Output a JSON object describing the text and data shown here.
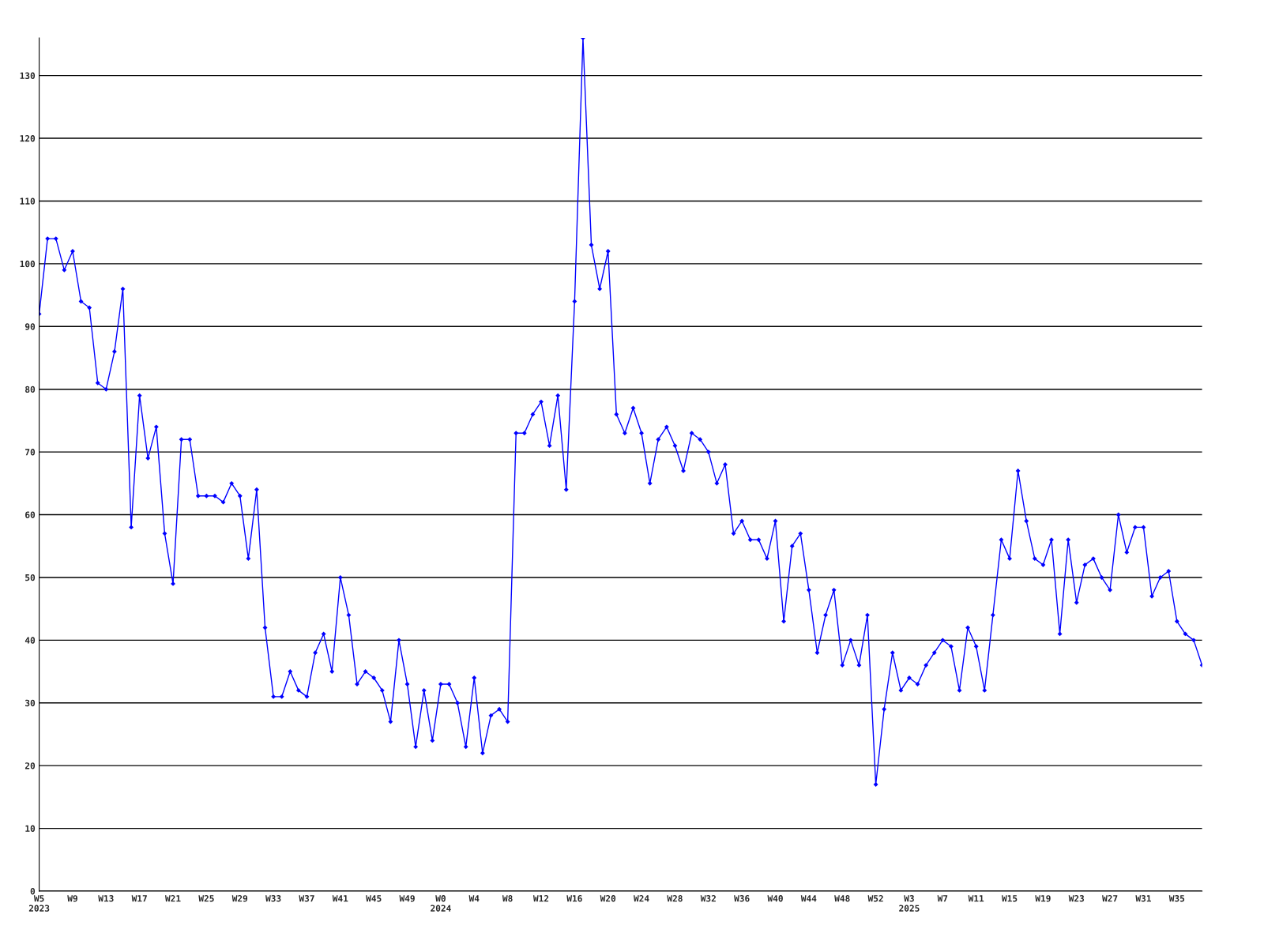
{
  "chart_data": {
    "type": "line",
    "categories": [
      "W5\n2023",
      null,
      null,
      null,
      "W9",
      null,
      null,
      null,
      "W13",
      null,
      null,
      null,
      "W17",
      null,
      null,
      null,
      "W21",
      null,
      null,
      null,
      "W25",
      null,
      null,
      null,
      "W29",
      null,
      null,
      null,
      "W33",
      null,
      null,
      null,
      "W37",
      null,
      null,
      null,
      "W41",
      null,
      null,
      null,
      "W45",
      null,
      null,
      null,
      "W49",
      null,
      null,
      null,
      "W0\n2024",
      null,
      null,
      null,
      "W4",
      null,
      null,
      null,
      "W8",
      null,
      null,
      null,
      "W12",
      null,
      null,
      null,
      "W16",
      null,
      null,
      null,
      "W20",
      null,
      null,
      null,
      "W24",
      null,
      null,
      null,
      "W28",
      null,
      null,
      null,
      "W32",
      null,
      null,
      null,
      "W36",
      null,
      null,
      null,
      "W40",
      null,
      null,
      null,
      "W44",
      null,
      null,
      null,
      "W48",
      null,
      null,
      null,
      "W52",
      null,
      null,
      null,
      "W3\n2025",
      null,
      null,
      null,
      "W7",
      null,
      null,
      null,
      "W11",
      null,
      null,
      null,
      "W15",
      null,
      null,
      null,
      "W19",
      null,
      null,
      null,
      "W23",
      null,
      null,
      null,
      "W27",
      null,
      null,
      null,
      "W31",
      null,
      null,
      null,
      "W35",
      null,
      null,
      null
    ],
    "series": [
      {
        "color": "#0000ff",
        "values": [
          92,
          104,
          104,
          99,
          102,
          94,
          93,
          81,
          80,
          86,
          96,
          58,
          79,
          69,
          74,
          57,
          49,
          72,
          72,
          63,
          63,
          63,
          62,
          65,
          63,
          53,
          64,
          42,
          31,
          31,
          35,
          32,
          31,
          38,
          41,
          35,
          50,
          44,
          33,
          35,
          34,
          32,
          27,
          40,
          33,
          23,
          32,
          24,
          33,
          33,
          30,
          23,
          34,
          22,
          28,
          29,
          27,
          73,
          73,
          76,
          78,
          71,
          79,
          64,
          94,
          136,
          103,
          96,
          102,
          76,
          73,
          77,
          73,
          65,
          72,
          74,
          71,
          67,
          73,
          72,
          70,
          65,
          68,
          57,
          59,
          56,
          56,
          53,
          59,
          43,
          55,
          57,
          48,
          38,
          44,
          48,
          36,
          40,
          36,
          44,
          17,
          29,
          38,
          32,
          34,
          33,
          36,
          38,
          40,
          39,
          32,
          42,
          39,
          32,
          44,
          56,
          53,
          67,
          59,
          53,
          52,
          56,
          41,
          56,
          46,
          52,
          53,
          50,
          48,
          60,
          54,
          58,
          58,
          47,
          50,
          51,
          43,
          41,
          40,
          36
        ]
      }
    ],
    "ylim": [
      0,
      136
    ],
    "yticks": [
      0,
      10,
      20,
      30,
      40,
      50,
      60,
      70,
      80,
      90,
      100,
      110,
      120,
      130
    ],
    "grid": "y",
    "marker": "diamond",
    "line_style": "solid",
    "legend": false
  }
}
